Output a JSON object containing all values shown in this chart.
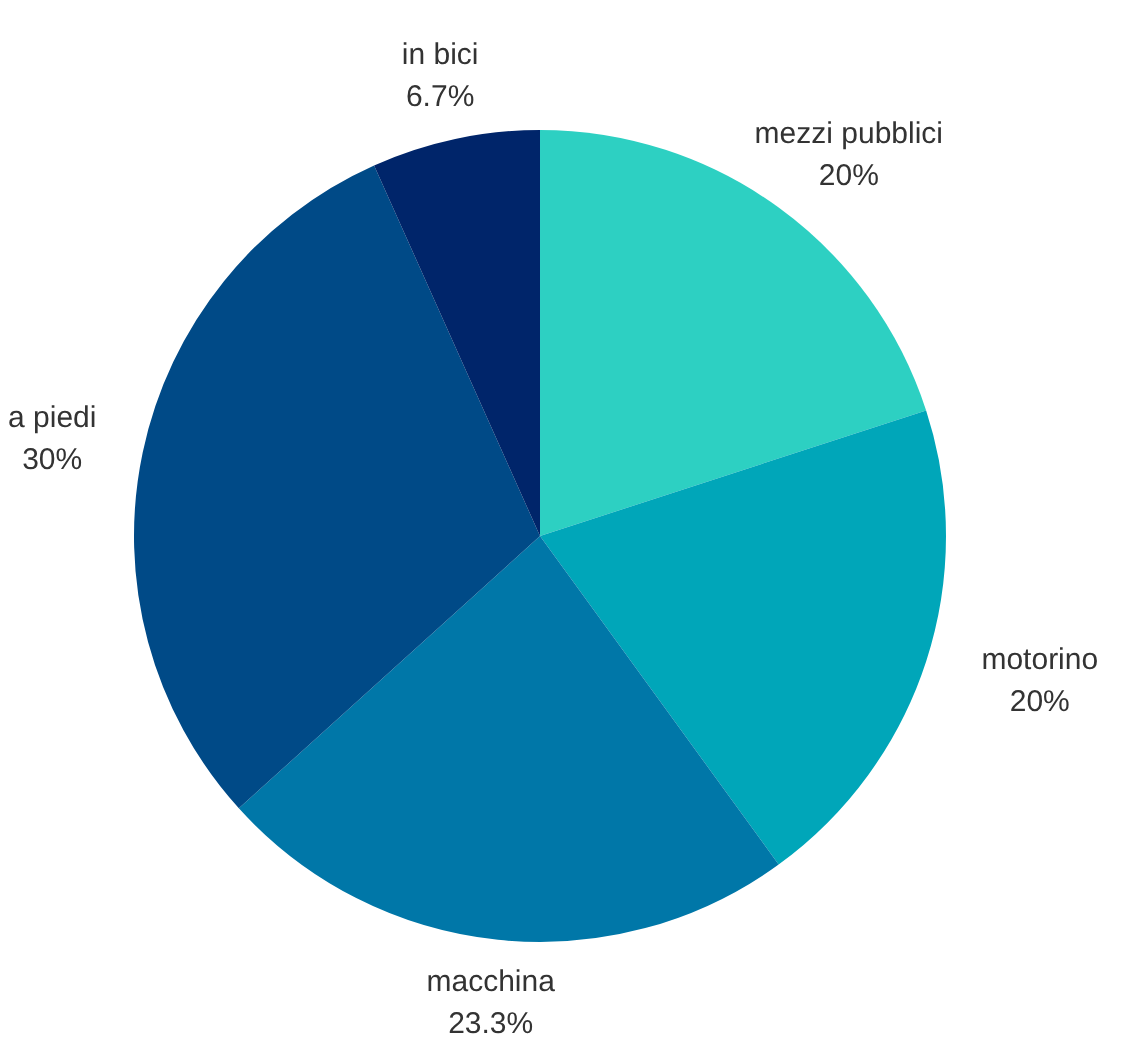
{
  "chart_data": {
    "type": "pie",
    "categories": [
      "mezzi pubblici",
      "motorino",
      "macchina",
      "a piedi",
      "in bici"
    ],
    "values": [
      20,
      20,
      23.3,
      30,
      6.7
    ],
    "value_labels": [
      "20%",
      "20%",
      "23.3%",
      "30%",
      "6.7%"
    ],
    "colors": [
      "#2dd0c2",
      "#00a6b9",
      "#0077a8",
      "#004a87",
      "#00256a"
    ],
    "legend": false
  }
}
